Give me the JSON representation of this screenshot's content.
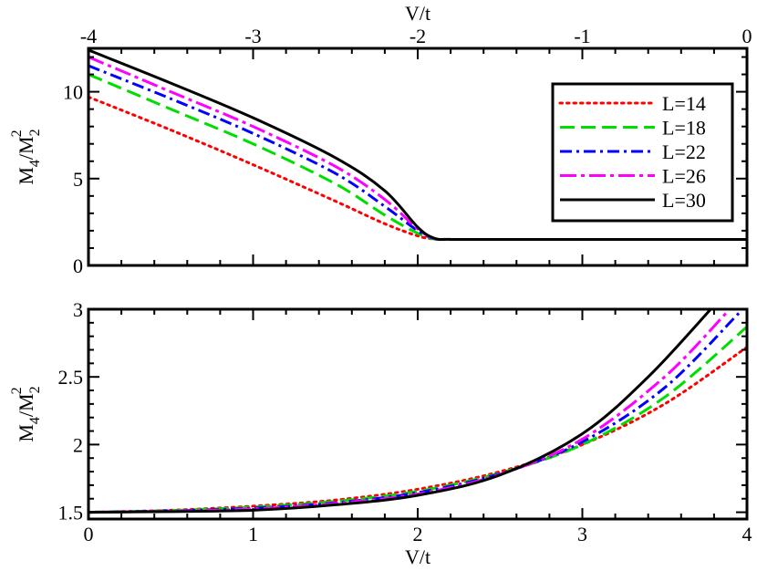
{
  "chart_data": [
    {
      "type": "line",
      "xlabel": "V/t",
      "ylabel_main": "M",
      "ylabel_sub1": "4",
      "ylabel_slash": "/M",
      "ylabel_sub2": "2",
      "ylabel_sup": "2",
      "xlim": [
        -4,
        0
      ],
      "ylim": [
        0,
        12.5
      ],
      "xticks": [
        -4,
        -3,
        -2,
        -1,
        0
      ],
      "yticks": [
        0,
        5,
        10
      ],
      "grid": false,
      "legend_position": "top-right",
      "series": [
        {
          "name": "L=14",
          "color": "#ff0000",
          "dash": "dotted",
          "x": [
            -4,
            -3.5,
            -3,
            -2.5,
            -2.2,
            -2.0,
            -1.9,
            -1.8,
            -1.5,
            -1,
            -0.5,
            0
          ],
          "y": [
            9.7,
            7.8,
            5.8,
            3.7,
            2.4,
            1.7,
            1.52,
            1.5,
            1.5,
            1.5,
            1.5,
            1.5
          ]
        },
        {
          "name": "L=18",
          "color": "#00dd00",
          "dash": "dashed",
          "x": [
            -4,
            -3.5,
            -3,
            -2.5,
            -2.2,
            -2.0,
            -1.9,
            -1.8,
            -1.5,
            -1,
            -0.5,
            0
          ],
          "y": [
            11.0,
            9.0,
            7.0,
            4.7,
            2.9,
            1.85,
            1.52,
            1.5,
            1.5,
            1.5,
            1.5,
            1.5
          ]
        },
        {
          "name": "L=22",
          "color": "#0000ff",
          "dash": "dashdot",
          "x": [
            -4,
            -3.5,
            -3,
            -2.5,
            -2.2,
            -2.0,
            -1.9,
            -1.8,
            -1.5,
            -1,
            -0.5,
            0
          ],
          "y": [
            11.5,
            9.6,
            7.6,
            5.3,
            3.4,
            2.0,
            1.55,
            1.5,
            1.5,
            1.5,
            1.5,
            1.5
          ]
        },
        {
          "name": "L=26",
          "color": "#ff00ff",
          "dash": "dashdotlong",
          "x": [
            -4,
            -3.5,
            -3,
            -2.5,
            -2.2,
            -2.0,
            -1.9,
            -1.8,
            -1.5,
            -1,
            -0.5,
            0
          ],
          "y": [
            12.0,
            10.0,
            8.0,
            5.7,
            3.8,
            2.1,
            1.56,
            1.5,
            1.5,
            1.5,
            1.5,
            1.5
          ]
        },
        {
          "name": "L=30",
          "color": "#000000",
          "dash": "solid",
          "x": [
            -4,
            -3.5,
            -3,
            -2.5,
            -2.2,
            -2.0,
            -1.9,
            -1.8,
            -1.5,
            -1,
            -0.5,
            0
          ],
          "y": [
            12.4,
            10.5,
            8.5,
            6.2,
            4.3,
            2.2,
            1.57,
            1.5,
            1.5,
            1.5,
            1.5,
            1.5
          ]
        }
      ]
    },
    {
      "type": "line",
      "xlabel": "V/t",
      "ylabel_main": "M",
      "ylabel_sub1": "4",
      "ylabel_slash": "/M",
      "ylabel_sub2": "2",
      "ylabel_sup": "2",
      "xlim": [
        0,
        4
      ],
      "ylim": [
        1.45,
        3.0
      ],
      "xticks": [
        0,
        1,
        2,
        3,
        4
      ],
      "yticks": [
        1.5,
        2,
        2.5,
        3
      ],
      "grid": false,
      "series": [
        {
          "name": "L=14",
          "color": "#ff0000",
          "dash": "dotted",
          "x": [
            0,
            0.5,
            1,
            1.5,
            2,
            2.5,
            3,
            3.5,
            4
          ],
          "y": [
            1.5,
            1.515,
            1.545,
            1.59,
            1.67,
            1.8,
            2.0,
            2.3,
            2.72
          ]
        },
        {
          "name": "L=18",
          "color": "#00dd00",
          "dash": "dashed",
          "x": [
            0,
            0.5,
            1,
            1.5,
            2,
            2.5,
            3,
            3.5,
            4
          ],
          "y": [
            1.5,
            1.513,
            1.538,
            1.58,
            1.655,
            1.79,
            2.0,
            2.35,
            2.87
          ]
        },
        {
          "name": "L=22",
          "color": "#0000ff",
          "dash": "dashdot",
          "x": [
            0,
            0.5,
            1,
            1.5,
            2,
            2.5,
            3,
            3.5,
            3.95
          ],
          "y": [
            1.5,
            1.51,
            1.53,
            1.57,
            1.645,
            1.785,
            2.02,
            2.42,
            2.97
          ]
        },
        {
          "name": "L=26",
          "color": "#ff00ff",
          "dash": "dashdotlong",
          "x": [
            0,
            0.5,
            1,
            1.5,
            2,
            2.5,
            3,
            3.5,
            3.88
          ],
          "y": [
            1.5,
            1.508,
            1.525,
            1.565,
            1.635,
            1.78,
            2.04,
            2.5,
            2.98
          ]
        },
        {
          "name": "L=30",
          "color": "#000000",
          "dash": "solid",
          "x": [
            0,
            0.5,
            1,
            1.5,
            2,
            2.5,
            3,
            3.4,
            3.78
          ],
          "y": [
            1.5,
            1.505,
            1.515,
            1.555,
            1.625,
            1.775,
            2.08,
            2.5,
            3.0
          ]
        }
      ]
    }
  ]
}
